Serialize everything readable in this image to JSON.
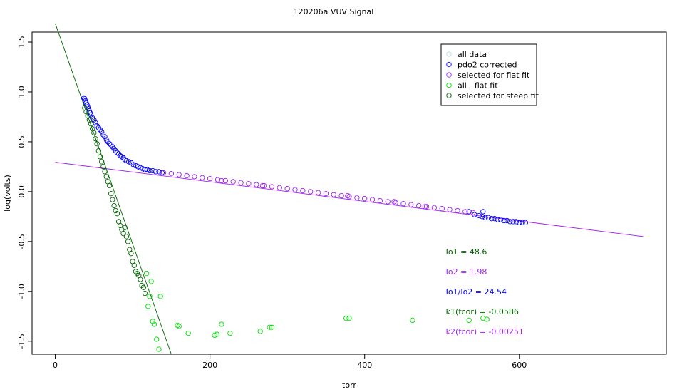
{
  "chart_data": {
    "type": "scatter",
    "title": "120206a   VUV Signal",
    "xlabel": "torr",
    "ylabel": "log(volts)",
    "xlim": [
      -30,
      790
    ],
    "ylim": [
      -1.63,
      1.6
    ],
    "x_ticks": [
      0,
      200,
      400,
      600
    ],
    "y_ticks": [
      1.5,
      1.0,
      0.5,
      0.0,
      -0.5,
      -1.0,
      -1.5
    ],
    "x_tick_labels": [
      "0",
      "200",
      "400",
      "600"
    ],
    "y_tick_labels": [
      "1.5",
      "1.0",
      "0.5",
      "0.0",
      "-0.5",
      "-1.0",
      "-1.5"
    ],
    "grid": false,
    "legend_position": "top-right",
    "legend": [
      {
        "label": "all data",
        "color": "#b8d9d9"
      },
      {
        "label": "pdo2 corrected",
        "color": "#0000ff"
      },
      {
        "label": "selected for flat fit",
        "color": "#a020f0"
      },
      {
        "label": "all - flat fit",
        "color": "#00dd00"
      },
      {
        "label": "selected for steep fit",
        "color": "#006400"
      }
    ],
    "annotations": [
      {
        "text": "Io1 =  48.6",
        "color": "#006400",
        "x": 505,
        "y": -0.6
      },
      {
        "text": "Io2 =  1.98",
        "color": "#a020f0",
        "x": 505,
        "y": -0.8
      },
      {
        "text": "Io1/Io2 =  24.54",
        "color": "#0000ff",
        "x": 505,
        "y": -1.0
      },
      {
        "text": "k1(tcor) =  -0.0586",
        "color": "#006400",
        "x": 505,
        "y": -1.2
      },
      {
        "text": "k2(tcor) =  -0.00251",
        "color": "#a020f0",
        "x": 505,
        "y": -1.4
      }
    ],
    "fit_lines": [
      {
        "name": "flat fit",
        "color": "#a020f0",
        "x": [
          0,
          760
        ],
        "y": [
          0.295,
          -0.45
        ]
      },
      {
        "name": "steep fit",
        "color": "#006400",
        "x": [
          0,
          150
        ],
        "y": [
          1.686,
          -1.63
        ]
      }
    ],
    "series": [
      {
        "name": "pdo2 corrected",
        "color": "#0000ff",
        "x": [
          37,
          38,
          39,
          40,
          41,
          42,
          43,
          44,
          45,
          46,
          48,
          50,
          52,
          54,
          56,
          58,
          60,
          62,
          64,
          66,
          68,
          70,
          72,
          74,
          76,
          78,
          80,
          82,
          84,
          86,
          88,
          90,
          92,
          95,
          98,
          101,
          104,
          107,
          110,
          113,
          116,
          119,
          122,
          126,
          130,
          134,
          138,
          542,
          548,
          552,
          556,
          560,
          564,
          568,
          572,
          576,
          580,
          584,
          588,
          592,
          596,
          600,
          604,
          608,
          535,
          553
        ],
        "y": [
          0.94,
          0.93,
          0.91,
          0.89,
          0.87,
          0.85,
          0.83,
          0.81,
          0.79,
          0.77,
          0.74,
          0.72,
          0.69,
          0.66,
          0.64,
          0.62,
          0.6,
          0.57,
          0.55,
          0.52,
          0.5,
          0.48,
          0.47,
          0.45,
          0.43,
          0.41,
          0.39,
          0.38,
          0.36,
          0.35,
          0.34,
          0.32,
          0.31,
          0.3,
          0.29,
          0.27,
          0.26,
          0.25,
          0.24,
          0.23,
          0.22,
          0.22,
          0.21,
          0.21,
          0.2,
          0.2,
          0.19,
          -0.23,
          -0.24,
          -0.25,
          -0.26,
          -0.26,
          -0.27,
          -0.27,
          -0.28,
          -0.28,
          -0.29,
          -0.29,
          -0.3,
          -0.3,
          -0.3,
          -0.31,
          -0.31,
          -0.31,
          -0.2,
          -0.2
        ]
      },
      {
        "name": "selected for flat fit",
        "color": "#a020f0",
        "x": [
          140,
          150,
          160,
          170,
          180,
          190,
          200,
          210,
          220,
          230,
          240,
          250,
          260,
          270,
          280,
          290,
          300,
          310,
          320,
          330,
          340,
          350,
          360,
          370,
          380,
          390,
          400,
          410,
          420,
          430,
          440,
          450,
          460,
          470,
          480,
          490,
          500,
          510,
          520,
          530,
          540,
          215,
          268,
          378,
          438,
          478
        ],
        "y": [
          0.19,
          0.18,
          0.17,
          0.16,
          0.15,
          0.14,
          0.13,
          0.12,
          0.11,
          0.1,
          0.09,
          0.08,
          0.07,
          0.06,
          0.05,
          0.04,
          0.03,
          0.02,
          0.01,
          0.0,
          -0.01,
          -0.02,
          -0.03,
          -0.04,
          -0.05,
          -0.06,
          -0.07,
          -0.08,
          -0.09,
          -0.1,
          -0.11,
          -0.12,
          -0.13,
          -0.14,
          -0.15,
          -0.16,
          -0.17,
          -0.18,
          -0.19,
          -0.2,
          -0.21,
          0.11,
          0.06,
          -0.04,
          -0.1,
          -0.15
        ]
      },
      {
        "name": "all - flat fit",
        "color": "#00dd00",
        "x": [
          118,
          120,
          122,
          124,
          126,
          128,
          131,
          134,
          136,
          158,
          160,
          172,
          206,
          209,
          215,
          226,
          265,
          277,
          280,
          376,
          380,
          462,
          535,
          553,
          558
        ],
        "y": [
          -0.82,
          -1.15,
          -1.05,
          -0.9,
          -1.3,
          -1.33,
          -1.48,
          -1.58,
          -1.05,
          -1.34,
          -1.35,
          -1.42,
          -1.44,
          -1.43,
          -1.33,
          -1.42,
          -1.4,
          -1.36,
          -1.36,
          -1.27,
          -1.27,
          -1.29,
          -1.29,
          -1.27,
          -1.28
        ]
      },
      {
        "name": "selected for steep fit",
        "color": "#006400",
        "x": [
          38,
          40,
          42,
          44,
          46,
          48,
          50,
          52,
          54,
          56,
          58,
          60,
          62,
          64,
          66,
          68,
          70,
          72,
          74,
          76,
          78,
          80,
          82,
          84,
          86,
          88,
          90,
          92,
          94,
          96,
          98,
          100,
          102,
          104,
          106,
          108,
          110,
          112,
          114,
          116
        ],
        "y": [
          0.84,
          0.8,
          0.76,
          0.72,
          0.68,
          0.63,
          0.59,
          0.53,
          0.48,
          0.41,
          0.35,
          0.3,
          0.25,
          0.2,
          0.15,
          0.1,
          0.06,
          -0.02,
          -0.08,
          -0.14,
          -0.19,
          -0.22,
          -0.3,
          -0.34,
          -0.38,
          -0.42,
          -0.36,
          -0.45,
          -0.5,
          -0.58,
          -0.62,
          -0.7,
          -0.74,
          -0.8,
          -0.82,
          -0.84,
          -0.88,
          -0.94,
          -0.96,
          -1.02
        ]
      }
    ]
  }
}
